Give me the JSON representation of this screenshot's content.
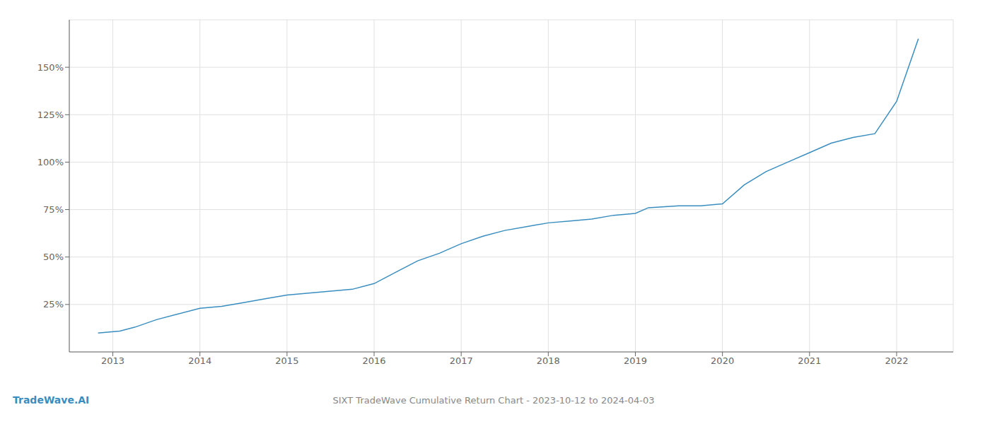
{
  "chart_data": {
    "type": "line",
    "title": "SIXT TradeWave Cumulative Return Chart - 2023-10-12 to 2024-04-03",
    "annotations": [
      "TradeWave.AI"
    ],
    "x": [
      2012.83,
      2013.08,
      2013.25,
      2013.5,
      2013.75,
      2014.0,
      2014.25,
      2014.5,
      2014.75,
      2015.0,
      2015.25,
      2015.5,
      2015.75,
      2016.0,
      2016.25,
      2016.5,
      2016.75,
      2017.0,
      2017.25,
      2017.5,
      2017.75,
      2018.0,
      2018.25,
      2018.5,
      2018.75,
      2019.0,
      2019.15,
      2019.5,
      2019.75,
      2020.0,
      2020.25,
      2020.5,
      2020.75,
      2021.0,
      2021.25,
      2021.5,
      2021.75,
      2022.0,
      2022.25
    ],
    "values": [
      10,
      11,
      13,
      17,
      20,
      23,
      24,
      26,
      28,
      30,
      31,
      32,
      33,
      36,
      42,
      48,
      52,
      57,
      61,
      64,
      66,
      68,
      69,
      70,
      72,
      73,
      76,
      77,
      77,
      78,
      88,
      95,
      100,
      105,
      110,
      113,
      115,
      132,
      165
    ],
    "color": "#3a8ebf",
    "xlim": [
      2012.5,
      2022.65
    ],
    "xticks": [
      2013,
      2014,
      2015,
      2016,
      2017,
      2018,
      2019,
      2020,
      2021,
      2022
    ],
    "ylim": [
      0,
      175
    ],
    "yticks": [
      {
        "value": 25,
        "label": "25%"
      },
      {
        "value": 50,
        "label": "50%"
      },
      {
        "value": 75,
        "label": "75%"
      },
      {
        "value": 100,
        "label": "100%"
      },
      {
        "value": 125,
        "label": "125%"
      },
      {
        "value": 150,
        "label": "150%"
      }
    ],
    "grid": true
  }
}
